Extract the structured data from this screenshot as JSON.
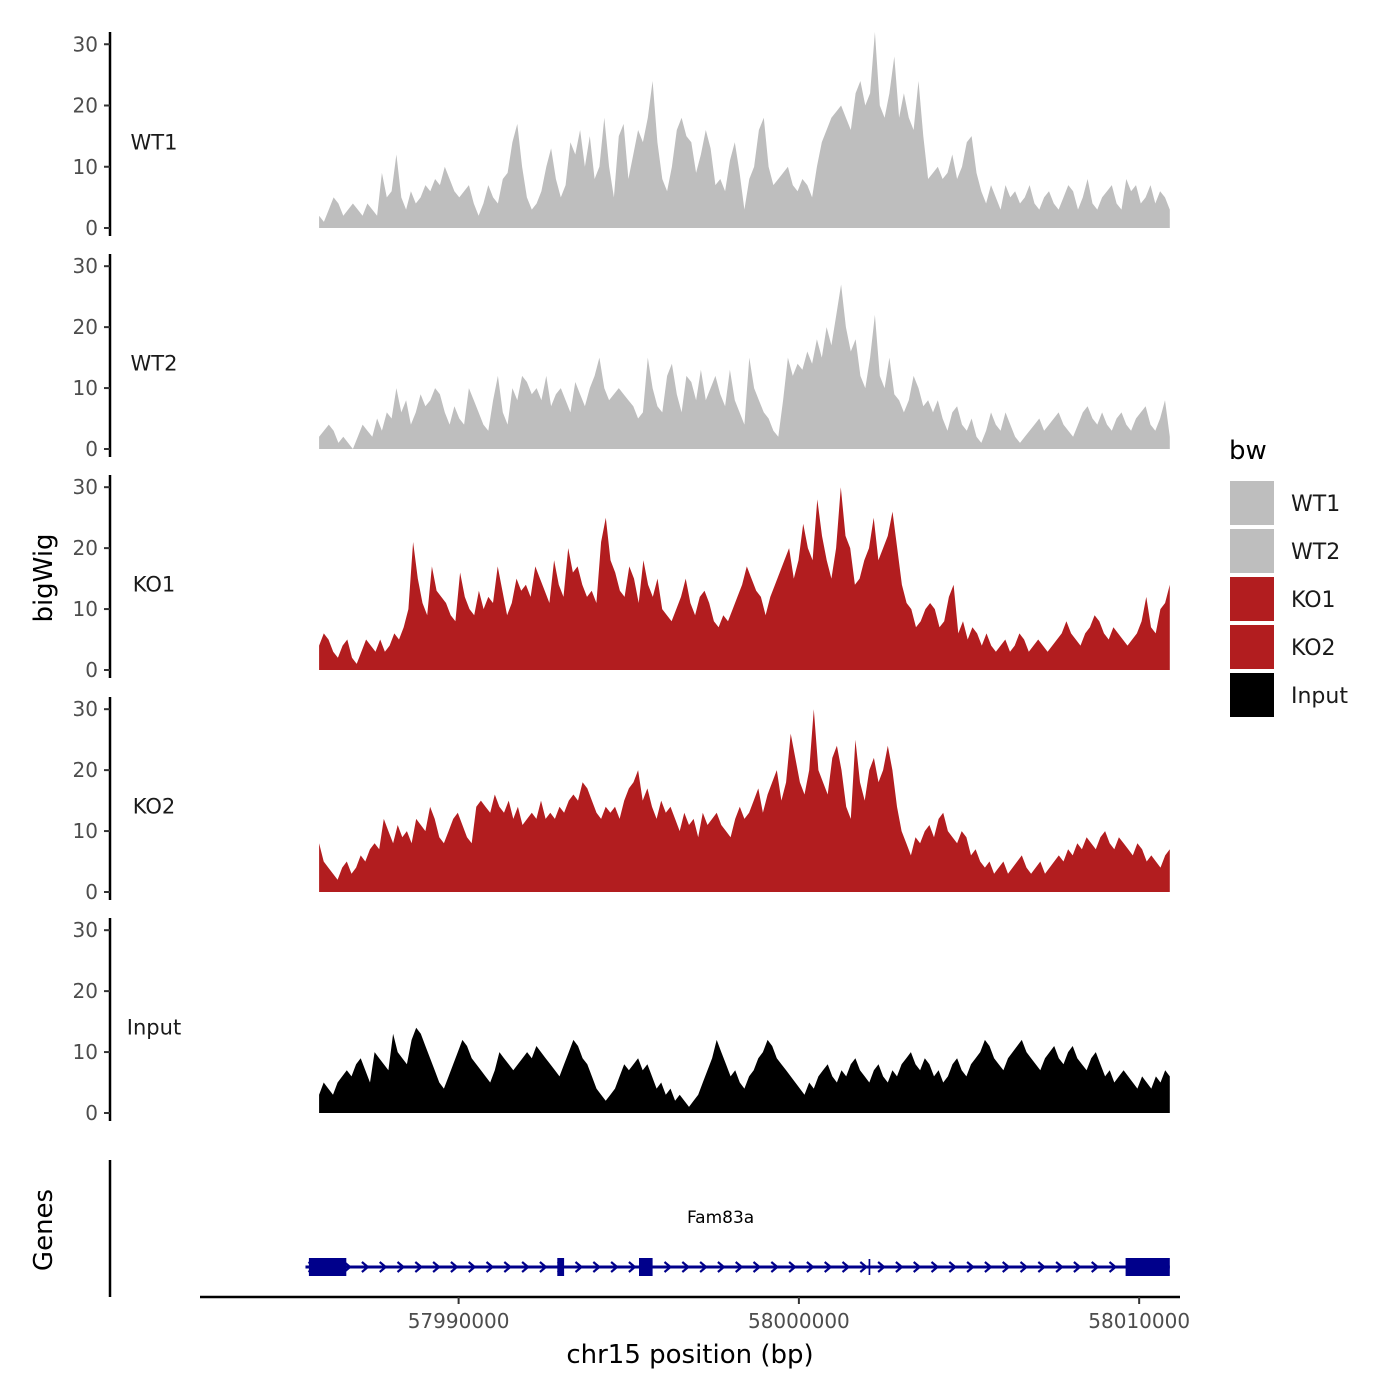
{
  "chart_data": {
    "type": "area",
    "title": "",
    "chrom": "chr15",
    "xlabel": "chr15 position (bp)",
    "ylabel": "bigWig",
    "genes_label": "Genes",
    "xlim": [
      57982400,
      58011200
    ],
    "data_range": [
      57985900,
      58010900
    ],
    "x_ticks": [
      57990000,
      58000000,
      58010000
    ],
    "x_tick_labels": [
      "57990000",
      "58000000",
      "58010000"
    ],
    "ylim": [
      0,
      32
    ],
    "y_ticks": [
      0,
      10,
      20,
      30
    ],
    "y_tick_labels": [
      "0",
      "10",
      "20",
      "30"
    ],
    "legend": {
      "title": "bw",
      "position": "right"
    },
    "series": [
      {
        "name": "WT1",
        "color": "#bebebe",
        "values": [
          2,
          1,
          3,
          5,
          4,
          2,
          3,
          4,
          3,
          2,
          4,
          3,
          2,
          9,
          5,
          6,
          12,
          5,
          3,
          6,
          4,
          5,
          7,
          6,
          8,
          7,
          10,
          8,
          6,
          5,
          6,
          7,
          4,
          2,
          4,
          7,
          5,
          4,
          8,
          9,
          14,
          17,
          10,
          5,
          3,
          4,
          6,
          10,
          13,
          8,
          5,
          7,
          14,
          12,
          16,
          10,
          15,
          8,
          10,
          18,
          10,
          5,
          15,
          17,
          8,
          12,
          16,
          14,
          18,
          24,
          14,
          8,
          6,
          10,
          16,
          18,
          15,
          14,
          9,
          12,
          16,
          13,
          7,
          8,
          6,
          11,
          14,
          9,
          3,
          8,
          10,
          16,
          18,
          10,
          7,
          8,
          9,
          10,
          7,
          6,
          8,
          7,
          5,
          10,
          14,
          16,
          18,
          19,
          20,
          18,
          16,
          22,
          24,
          20,
          22,
          32,
          20,
          18,
          22,
          28,
          18,
          22,
          18,
          16,
          24,
          15,
          8,
          9,
          10,
          8,
          9,
          12,
          8,
          10,
          14,
          15,
          9,
          6,
          4,
          7,
          5,
          3,
          7,
          5,
          6,
          4,
          5,
          7,
          4,
          3,
          5,
          6,
          4,
          3,
          5,
          7,
          6,
          3,
          5,
          8,
          4,
          3,
          5,
          6,
          7,
          4,
          3,
          8,
          6,
          7,
          4,
          5,
          7,
          4,
          6,
          5,
          3
        ]
      },
      {
        "name": "WT2",
        "color": "#bebebe",
        "values": [
          2,
          3,
          4,
          3,
          1,
          2,
          1,
          0,
          2,
          4,
          3,
          2,
          5,
          3,
          6,
          5,
          10,
          6,
          8,
          4,
          6,
          9,
          7,
          8,
          10,
          9,
          6,
          4,
          7,
          5,
          4,
          10,
          8,
          6,
          4,
          3,
          8,
          12,
          6,
          4,
          10,
          8,
          12,
          11,
          9,
          10,
          8,
          12,
          7,
          9,
          10,
          8,
          6,
          11,
          9,
          7,
          10,
          12,
          15,
          10,
          8,
          9,
          10,
          9,
          8,
          7,
          5,
          6,
          15,
          10,
          7,
          6,
          12,
          14,
          9,
          6,
          12,
          11,
          8,
          13,
          8,
          10,
          12,
          9,
          7,
          13,
          8,
          6,
          4,
          15,
          10,
          8,
          6,
          5,
          3,
          2,
          8,
          15,
          12,
          14,
          13,
          16,
          14,
          18,
          15,
          20,
          17,
          22,
          27,
          20,
          16,
          18,
          12,
          10,
          15,
          22,
          12,
          10,
          15,
          9,
          8,
          6,
          8,
          12,
          10,
          7,
          8,
          6,
          8,
          5,
          3,
          6,
          7,
          4,
          3,
          5,
          2,
          1,
          3,
          6,
          4,
          3,
          6,
          4,
          2,
          1,
          2,
          3,
          4,
          5,
          3,
          4,
          5,
          6,
          4,
          3,
          2,
          4,
          6,
          7,
          5,
          4,
          6,
          4,
          3,
          5,
          6,
          4,
          3,
          5,
          6,
          7,
          4,
          3,
          5,
          8,
          2
        ]
      },
      {
        "name": "KO1",
        "color": "#b21d1f",
        "values": [
          4,
          6,
          5,
          3,
          2,
          4,
          5,
          2,
          1,
          3,
          5,
          4,
          3,
          5,
          3,
          4,
          6,
          5,
          7,
          10,
          21,
          15,
          11,
          9,
          17,
          13,
          12,
          11,
          9,
          8,
          16,
          12,
          10,
          9,
          13,
          10,
          12,
          11,
          17,
          13,
          9,
          11,
          15,
          13,
          14,
          12,
          17,
          15,
          13,
          11,
          18,
          14,
          12,
          20,
          16,
          17,
          14,
          12,
          13,
          11,
          21,
          25,
          18,
          16,
          13,
          12,
          17,
          15,
          11,
          18,
          14,
          12,
          15,
          10,
          9,
          8,
          10,
          12,
          15,
          11,
          9,
          12,
          13,
          11,
          8,
          7,
          9,
          8,
          10,
          12,
          14,
          17,
          15,
          13,
          12,
          9,
          12,
          14,
          16,
          18,
          20,
          15,
          18,
          24,
          20,
          18,
          28,
          22,
          18,
          15,
          20,
          30,
          22,
          20,
          14,
          15,
          18,
          20,
          25,
          18,
          20,
          22,
          26,
          20,
          14,
          11,
          10,
          7,
          8,
          10,
          11,
          10,
          7,
          8,
          12,
          14,
          6,
          8,
          5,
          7,
          6,
          4,
          6,
          4,
          3,
          4,
          5,
          3,
          4,
          6,
          5,
          3,
          4,
          5,
          4,
          3,
          4,
          5,
          6,
          8,
          6,
          5,
          4,
          6,
          7,
          9,
          8,
          6,
          5,
          7,
          6,
          5,
          4,
          5,
          6,
          8,
          12,
          7,
          6,
          10,
          11,
          14
        ]
      },
      {
        "name": "KO2",
        "color": "#b21d1f",
        "values": [
          8,
          5,
          4,
          3,
          2,
          4,
          5,
          3,
          4,
          6,
          5,
          7,
          8,
          7,
          12,
          10,
          8,
          11,
          9,
          10,
          8,
          12,
          11,
          10,
          14,
          12,
          9,
          8,
          10,
          12,
          13,
          11,
          9,
          8,
          14,
          15,
          14,
          13,
          16,
          14,
          13,
          15,
          12,
          14,
          11,
          12,
          13,
          12,
          15,
          12,
          13,
          12,
          14,
          13,
          15,
          16,
          15,
          18,
          17,
          15,
          13,
          12,
          14,
          13,
          14,
          12,
          15,
          17,
          18,
          20,
          15,
          17,
          14,
          12,
          15,
          13,
          14,
          12,
          10,
          13,
          11,
          12,
          9,
          13,
          11,
          12,
          13,
          11,
          10,
          9,
          12,
          14,
          12,
          13,
          15,
          17,
          13,
          16,
          18,
          20,
          15,
          18,
          26,
          22,
          18,
          16,
          20,
          30,
          20,
          18,
          16,
          22,
          24,
          20,
          14,
          12,
          25,
          18,
          15,
          20,
          22,
          18,
          20,
          24,
          20,
          14,
          10,
          8,
          6,
          9,
          8,
          10,
          11,
          9,
          12,
          13,
          10,
          9,
          8,
          10,
          9,
          6,
          7,
          5,
          4,
          5,
          3,
          4,
          5,
          3,
          4,
          5,
          6,
          4,
          3,
          4,
          5,
          3,
          4,
          5,
          6,
          5,
          7,
          6,
          8,
          7,
          9,
          8,
          7,
          9,
          10,
          8,
          7,
          9,
          8,
          7,
          6,
          8,
          7,
          5,
          6,
          5,
          4,
          6,
          7
        ]
      },
      {
        "name": "Input",
        "color": "#000000",
        "values": [
          3,
          5,
          4,
          3,
          5,
          6,
          7,
          6,
          8,
          9,
          7,
          5,
          10,
          9,
          8,
          7,
          13,
          10,
          9,
          8,
          12,
          14,
          13,
          11,
          9,
          7,
          5,
          4,
          6,
          8,
          10,
          12,
          11,
          9,
          8,
          7,
          6,
          5,
          7,
          10,
          9,
          8,
          7,
          8,
          9,
          10,
          9,
          11,
          10,
          9,
          8,
          7,
          6,
          8,
          10,
          12,
          11,
          9,
          8,
          6,
          4,
          3,
          2,
          3,
          4,
          6,
          8,
          7,
          8,
          9,
          7,
          8,
          6,
          4,
          5,
          3,
          4,
          2,
          3,
          2,
          1,
          2,
          3,
          5,
          7,
          9,
          12,
          10,
          8,
          6,
          7,
          5,
          4,
          6,
          7,
          9,
          10,
          12,
          11,
          9,
          8,
          7,
          6,
          5,
          4,
          3,
          5,
          4,
          6,
          7,
          8,
          6,
          5,
          7,
          6,
          8,
          9,
          7,
          6,
          5,
          7,
          8,
          6,
          5,
          7,
          6,
          8,
          9,
          10,
          8,
          7,
          9,
          8,
          6,
          7,
          5,
          6,
          8,
          9,
          7,
          6,
          8,
          9,
          10,
          12,
          11,
          9,
          8,
          7,
          9,
          10,
          11,
          12,
          10,
          9,
          8,
          7,
          9,
          10,
          11,
          9,
          8,
          10,
          11,
          9,
          8,
          7,
          9,
          10,
          8,
          6,
          7,
          5,
          6,
          7,
          6,
          5,
          4,
          6,
          5,
          4,
          6,
          5,
          7,
          6
        ]
      }
    ],
    "gene": {
      "name": "Fam83a",
      "strand": "+",
      "start": 57985500,
      "end": 58010900,
      "color": "#00008b",
      "exons": [
        [
          57985600,
          57986700
        ],
        [
          57992900,
          57993100
        ],
        [
          57995300,
          57995700
        ],
        [
          58002050,
          58002100
        ],
        [
          58009600,
          58010900
        ]
      ]
    }
  }
}
